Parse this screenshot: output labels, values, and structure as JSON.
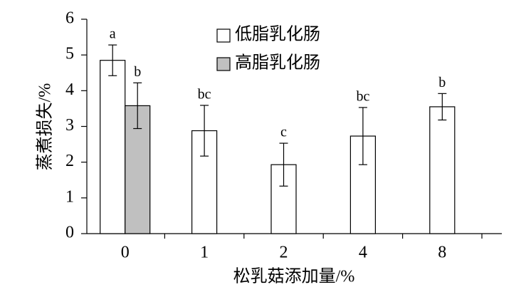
{
  "chart_data": {
    "type": "bar",
    "x_label": "松乳菇添加量/%",
    "y_label": "蒸煮损失/%",
    "categories": [
      "0",
      "1",
      "2",
      "4",
      "8"
    ],
    "series": [
      {
        "name": "低脂乳化肠",
        "color": "#ffffff",
        "values": [
          4.85,
          2.88,
          1.93,
          2.73,
          3.55
        ],
        "errors": [
          0.43,
          0.71,
          0.6,
          0.8,
          0.37
        ],
        "letters": [
          "a",
          "bc",
          "c",
          "bc",
          "b"
        ]
      },
      {
        "name": "高脂乳化肠",
        "color": "#c0c0c0",
        "values": [
          3.58,
          null,
          null,
          null,
          null
        ],
        "errors": [
          0.64,
          null,
          null,
          null,
          null
        ],
        "letters": [
          "b",
          null,
          null,
          null,
          null
        ]
      }
    ],
    "ylim": [
      0,
      6
    ],
    "yticks": [
      0,
      1,
      2,
      3,
      4,
      5,
      6
    ],
    "legend": "upper-center"
  }
}
